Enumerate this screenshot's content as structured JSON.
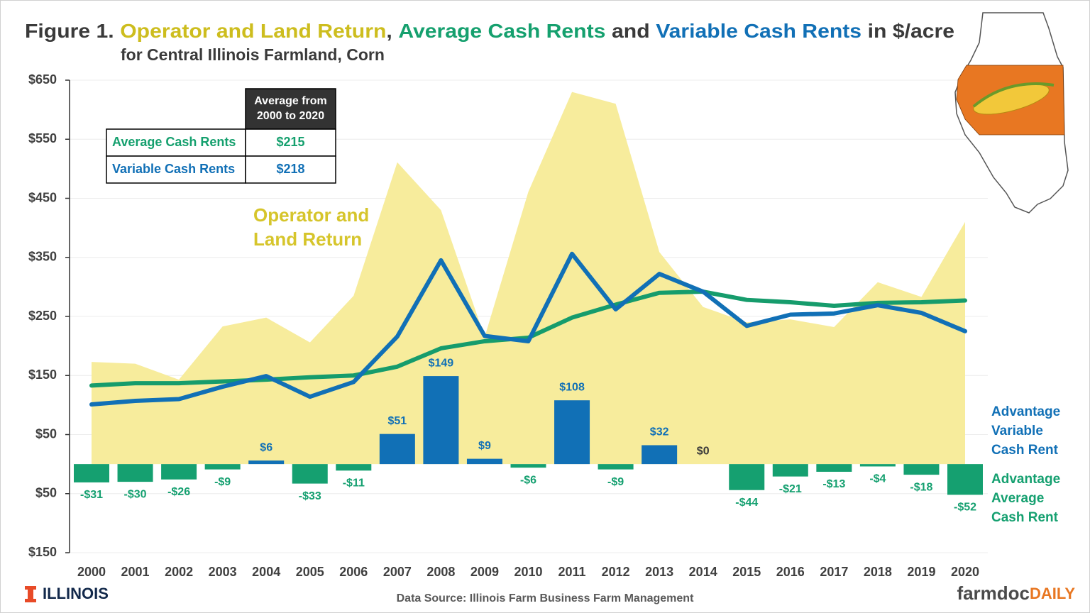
{
  "chart_data": {
    "type": "combo",
    "title_parts": [
      {
        "text": "Figure 1.",
        "color": "#3a3a3a"
      },
      {
        "text": "Operator and Land Return",
        "color": "#cdbd1e"
      },
      {
        "text": ",",
        "color": "#3a3a3a"
      },
      {
        "text": "Average Cash Rents",
        "color": "#15a06e"
      },
      {
        "text": "and",
        "color": "#3a3a3a"
      },
      {
        "text": "Variable Cash Rents",
        "color": "#1170b6"
      },
      {
        "text": "in $/acre",
        "color": "#3a3a3a"
      }
    ],
    "subtitle": "for Central Illinois Farmland, Corn",
    "categories": [
      "2000",
      "2001",
      "2002",
      "2003",
      "2004",
      "2005",
      "2006",
      "2007",
      "2008",
      "2009",
      "2010",
      "2011",
      "2012",
      "2013",
      "2014",
      "2015",
      "2016",
      "2017",
      "2018",
      "2019",
      "2020"
    ],
    "ylim": [
      -150,
      650
    ],
    "yticks": [
      {
        "value": 650,
        "label": "$650"
      },
      {
        "value": 550,
        "label": "$550"
      },
      {
        "value": 450,
        "label": "$450"
      },
      {
        "value": 350,
        "label": "$350"
      },
      {
        "value": 250,
        "label": "$250"
      },
      {
        "value": 150,
        "label": "$150"
      },
      {
        "value": 50,
        "label": "$50"
      },
      {
        "value": -50,
        "label": "$50"
      },
      {
        "value": -150,
        "label": "$150"
      }
    ],
    "grid": true,
    "series": [
      {
        "type": "area",
        "color": "#f7ec9c",
        "values": [
          173,
          170,
          143,
          233,
          248,
          206,
          285,
          511,
          430,
          215,
          461,
          630,
          610,
          359,
          266,
          240,
          245,
          232,
          308,
          283,
          410
        ],
        "annotation": [
          "Operator and",
          "Land Return"
        ],
        "annotation_color": "#d6c52b"
      },
      {
        "type": "line",
        "color": "#169c6c",
        "values": [
          133,
          137,
          137,
          140,
          143,
          147,
          150,
          165,
          196,
          208,
          214,
          248,
          270,
          290,
          292,
          278,
          274,
          268,
          273,
          274,
          277
        ]
      },
      {
        "type": "line",
        "color": "#1170b6",
        "values": [
          101,
          107,
          110,
          131,
          149,
          114,
          139,
          216,
          345,
          217,
          208,
          356,
          262,
          322,
          292,
          234,
          253,
          255,
          269,
          256,
          225
        ]
      },
      {
        "type": "bar",
        "positive_color": "#1170b6",
        "negative_color": "#15a070",
        "zero_label_color": "#3a3a3a",
        "values": [
          -31,
          -30,
          -26,
          -9,
          6,
          -33,
          -11,
          51,
          149,
          9,
          -6,
          108,
          -9,
          32,
          0,
          -44,
          -21,
          -13,
          -4,
          -18,
          -52
        ],
        "value_labels": [
          "-$31",
          "-$30",
          "-$26",
          "-$9",
          "$6",
          "-$33",
          "-$11",
          "$51",
          "$149",
          "$9",
          "-$6",
          "$108",
          "-$9",
          "$32",
          "$0",
          "-$44",
          "-$21",
          "-$13",
          "-$4",
          "-$18",
          "-$52"
        ],
        "positive_label": [
          "Advantage",
          "Variable",
          "Cash Rent"
        ],
        "negative_label": [
          "Advantage",
          "Average",
          "Cash Rent"
        ]
      }
    ],
    "summary_table": {
      "header": [
        "Average from",
        "2000 to 2020"
      ],
      "rows": [
        {
          "label": "Average Cash Rents",
          "value": "$215",
          "color": "#15a06e"
        },
        {
          "label": "Variable Cash Rents",
          "value": "$218",
          "color": "#1170b6"
        }
      ]
    },
    "source": "Data Source: Illinois Farm Business Farm Management",
    "logos": {
      "left": "ILLINOIS",
      "right": [
        "farmdoc",
        "DAILY"
      ]
    }
  }
}
